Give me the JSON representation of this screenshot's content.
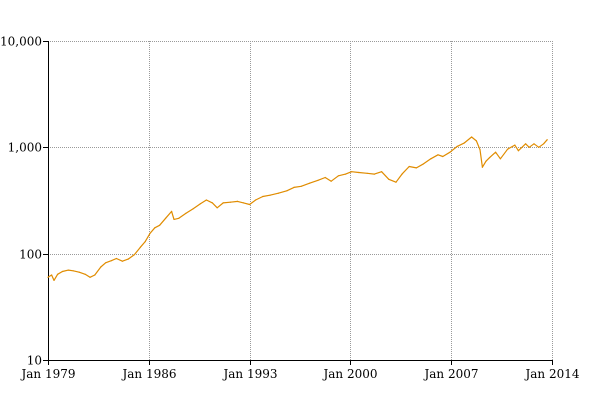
{
  "chart_data": {
    "type": "line",
    "title": "",
    "xlabel": "",
    "ylabel": "",
    "x_axis": {
      "type": "date",
      "range": [
        "1979-01",
        "2014-01"
      ],
      "ticks": [
        {
          "value": "1979-01",
          "label": "Jan 1979"
        },
        {
          "value": "1986-01",
          "label": "Jan 1986"
        },
        {
          "value": "1993-01",
          "label": "Jan 1993"
        },
        {
          "value": "2000-01",
          "label": "Jan 2000"
        },
        {
          "value": "2007-01",
          "label": "Jan 2007"
        },
        {
          "value": "2014-01",
          "label": "Jan 2014"
        }
      ]
    },
    "y_axis": {
      "scale": "log",
      "range": [
        10,
        10000
      ],
      "ticks": [
        {
          "value": 10,
          "label": "10"
        },
        {
          "value": 100,
          "label": "100"
        },
        {
          "value": 1000,
          "label": "1,000"
        },
        {
          "value": 10000,
          "label": "10,000"
        }
      ]
    },
    "grid": true,
    "legend": "none",
    "series": [
      {
        "color": "#e08c00",
        "points": [
          [
            "1979-01",
            60
          ],
          [
            "1979-04",
            63
          ],
          [
            "1979-06",
            56
          ],
          [
            "1979-09",
            64
          ],
          [
            "1980-01",
            68
          ],
          [
            "1980-06",
            70
          ],
          [
            "1980-10",
            69
          ],
          [
            "1981-03",
            67
          ],
          [
            "1981-08",
            64
          ],
          [
            "1981-12",
            60
          ],
          [
            "1982-04",
            63
          ],
          [
            "1982-09",
            75
          ],
          [
            "1983-01",
            82
          ],
          [
            "1983-06",
            86
          ],
          [
            "1983-10",
            90
          ],
          [
            "1984-03",
            85
          ],
          [
            "1984-08",
            89
          ],
          [
            "1985-01",
            98
          ],
          [
            "1985-06",
            115
          ],
          [
            "1985-10",
            130
          ],
          [
            "1986-02",
            155
          ],
          [
            "1986-06",
            175
          ],
          [
            "1986-10",
            185
          ],
          [
            "1987-03",
            215
          ],
          [
            "1987-08",
            250
          ],
          [
            "1987-10",
            210
          ],
          [
            "1988-02",
            215
          ],
          [
            "1988-08",
            240
          ],
          [
            "1989-02",
            265
          ],
          [
            "1989-08",
            295
          ],
          [
            "1990-01",
            320
          ],
          [
            "1990-06",
            300
          ],
          [
            "1990-10",
            270
          ],
          [
            "1991-03",
            300
          ],
          [
            "1991-09",
            305
          ],
          [
            "1992-03",
            310
          ],
          [
            "1992-08",
            300
          ],
          [
            "1993-01",
            290
          ],
          [
            "1993-06",
            320
          ],
          [
            "1993-12",
            345
          ],
          [
            "1994-06",
            355
          ],
          [
            "1995-01",
            370
          ],
          [
            "1995-08",
            390
          ],
          [
            "1996-02",
            420
          ],
          [
            "1996-08",
            430
          ],
          [
            "1997-03",
            460
          ],
          [
            "1997-10",
            490
          ],
          [
            "1998-04",
            520
          ],
          [
            "1998-09",
            480
          ],
          [
            "1999-03",
            540
          ],
          [
            "1999-09",
            560
          ],
          [
            "2000-02",
            590
          ],
          [
            "2000-08",
            580
          ],
          [
            "2001-03",
            570
          ],
          [
            "2001-09",
            560
          ],
          [
            "2002-03",
            590
          ],
          [
            "2002-09",
            500
          ],
          [
            "2003-03",
            470
          ],
          [
            "2003-08",
            560
          ],
          [
            "2004-02",
            660
          ],
          [
            "2004-08",
            640
          ],
          [
            "2005-02",
            700
          ],
          [
            "2005-08",
            780
          ],
          [
            "2006-02",
            850
          ],
          [
            "2006-06",
            820
          ],
          [
            "2006-12",
            900
          ],
          [
            "2007-06",
            1020
          ],
          [
            "2007-12",
            1100
          ],
          [
            "2008-06",
            1250
          ],
          [
            "2008-10",
            1150
          ],
          [
            "2009-01",
            950
          ],
          [
            "2009-03",
            650
          ],
          [
            "2009-06",
            740
          ],
          [
            "2009-09",
            800
          ],
          [
            "2010-02",
            900
          ],
          [
            "2010-06",
            780
          ],
          [
            "2010-12",
            960
          ],
          [
            "2011-06",
            1050
          ],
          [
            "2011-09",
            930
          ],
          [
            "2012-03",
            1080
          ],
          [
            "2012-06",
            1000
          ],
          [
            "2012-10",
            1080
          ],
          [
            "2013-02",
            1000
          ],
          [
            "2013-06",
            1080
          ],
          [
            "2013-09",
            1180
          ]
        ]
      }
    ]
  }
}
